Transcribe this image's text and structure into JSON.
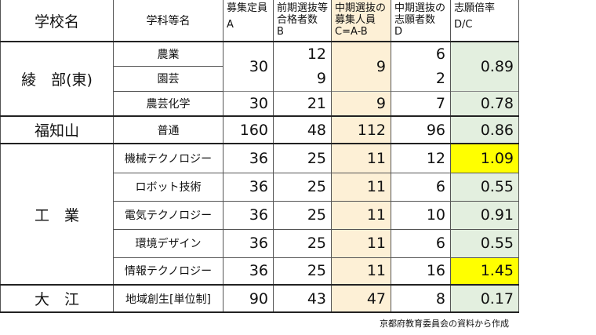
{
  "headers": {
    "school": "学校名",
    "dept": "学科等名",
    "a": {
      "title": "募集定員",
      "sub": "A"
    },
    "b": {
      "title1": "前期選抜等",
      "title2": "合格者数",
      "sub": "B"
    },
    "c": {
      "title1": "中期選抜の",
      "title2": "募集人員",
      "sub": "C=A-B"
    },
    "d": {
      "title1": "中期選抜の",
      "title2": "志願者数",
      "sub": "D"
    },
    "e": {
      "title": "志願倍率",
      "sub": "D/C"
    }
  },
  "schools": {
    "ayabe": "綾　部(東)",
    "fukuchiyama": "福知山",
    "kogyo": "工　業",
    "oe": "大　江"
  },
  "rows": [
    {
      "dept": "農業",
      "b": "12",
      "d": "6"
    },
    {
      "dept": "園芸",
      "b": "9",
      "d": "2"
    },
    {
      "dept": "農芸化学",
      "a": "30",
      "b": "21",
      "c": "9",
      "d": "7",
      "e": "0.78"
    },
    {
      "dept": "普通",
      "a": "160",
      "b": "48",
      "c": "112",
      "d": "96",
      "e": "0.86"
    },
    {
      "dept": "機械テクノロジー",
      "a": "36",
      "b": "25",
      "c": "11",
      "d": "12",
      "e": "1.09"
    },
    {
      "dept": "ロボット技術",
      "a": "36",
      "b": "25",
      "c": "11",
      "d": "6",
      "e": "0.55"
    },
    {
      "dept": "電気テクノロジー",
      "a": "36",
      "b": "25",
      "c": "11",
      "d": "10",
      "e": "0.91"
    },
    {
      "dept": "環境デザイン",
      "a": "36",
      "b": "25",
      "c": "11",
      "d": "6",
      "e": "0.55"
    },
    {
      "dept": "情報テクノロジー",
      "a": "36",
      "b": "25",
      "c": "11",
      "d": "16",
      "e": "1.45"
    },
    {
      "dept": "地域創生[単位制]",
      "a": "90",
      "b": "43",
      "c": "47",
      "d": "8",
      "e": "0.17"
    }
  ],
  "ayabe_merged": {
    "a": "30",
    "c": "9",
    "e": "0.89"
  },
  "source_note": "京都府教育委員会の資料から作成",
  "colors": {
    "c_column_bg": "#fdf0d6",
    "e_column_bg": "#e3efdf",
    "highlight": "#ffff00"
  }
}
